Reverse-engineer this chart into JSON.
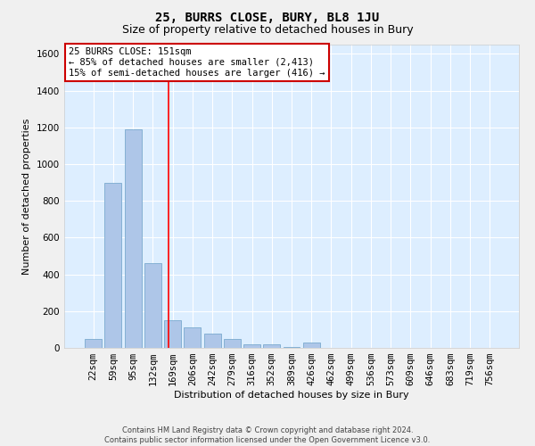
{
  "title": "25, BURRS CLOSE, BURY, BL8 1JU",
  "subtitle": "Size of property relative to detached houses in Bury",
  "xlabel": "Distribution of detached houses by size in Bury",
  "ylabel": "Number of detached properties",
  "footer_line1": "Contains HM Land Registry data © Crown copyright and database right 2024.",
  "footer_line2": "Contains public sector information licensed under the Open Government Licence v3.0.",
  "bin_labels": [
    "22sqm",
    "59sqm",
    "95sqm",
    "132sqm",
    "169sqm",
    "206sqm",
    "242sqm",
    "279sqm",
    "316sqm",
    "352sqm",
    "389sqm",
    "426sqm",
    "462sqm",
    "499sqm",
    "536sqm",
    "573sqm",
    "609sqm",
    "646sqm",
    "683sqm",
    "719sqm",
    "756sqm"
  ],
  "bar_values": [
    50,
    900,
    1190,
    460,
    150,
    110,
    80,
    50,
    20,
    20,
    5,
    30,
    0,
    0,
    0,
    0,
    0,
    0,
    0,
    0,
    0
  ],
  "bar_color": "#aec6e8",
  "bar_edge_color": "#7aaace",
  "fig_background_color": "#f0f0f0",
  "plot_background_color": "#ddeeff",
  "red_line_x": 3.78,
  "annotation_text_line1": "25 BURRS CLOSE: 151sqm",
  "annotation_text_line2": "← 85% of detached houses are smaller (2,413)",
  "annotation_text_line3": "15% of semi-detached houses are larger (416) →",
  "annotation_box_color": "#ffffff",
  "annotation_box_edge_color": "#cc0000",
  "ylim": [
    0,
    1650
  ],
  "yticks": [
    0,
    200,
    400,
    600,
    800,
    1000,
    1200,
    1400,
    1600
  ],
  "title_fontsize": 10,
  "subtitle_fontsize": 9,
  "axis_label_fontsize": 8,
  "tick_fontsize": 7.5,
  "annotation_fontsize": 7.5,
  "footer_fontsize": 6
}
